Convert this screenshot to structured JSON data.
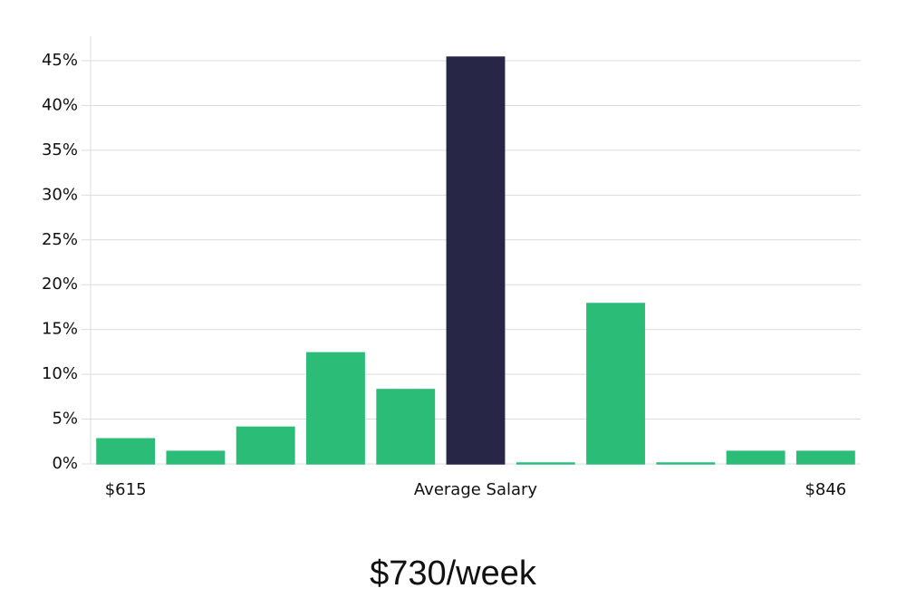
{
  "chart_data": {
    "type": "bar",
    "title": "$730/week",
    "categories": [
      "$615",
      null,
      null,
      null,
      null,
      "Average Salary",
      null,
      null,
      null,
      null,
      "$846"
    ],
    "values": [
      2.8,
      1.4,
      4.1,
      12.4,
      8.3,
      45.4,
      0.1,
      17.9,
      0.1,
      1.4,
      1.4
    ],
    "colors": [
      "#2bbd77",
      "#2bbd77",
      "#2bbd77",
      "#2bbd77",
      "#2bbd77",
      "#272646",
      "#2bbd77",
      "#2bbd77",
      "#2bbd77",
      "#2bbd77",
      "#2bbd77"
    ],
    "ylim": [
      0,
      48
    ],
    "yticks": [
      {
        "value": 0,
        "label": "0%"
      },
      {
        "value": 5,
        "label": "5%"
      },
      {
        "value": 10,
        "label": "10%"
      },
      {
        "value": 15,
        "label": "15%"
      },
      {
        "value": 20,
        "label": "20%"
      },
      {
        "value": 25,
        "label": "25%"
      },
      {
        "value": 30,
        "label": "30%"
      },
      {
        "value": 35,
        "label": "35%"
      },
      {
        "value": 40,
        "label": "40%"
      },
      {
        "value": 45,
        "label": "45%"
      }
    ],
    "grid": true
  }
}
